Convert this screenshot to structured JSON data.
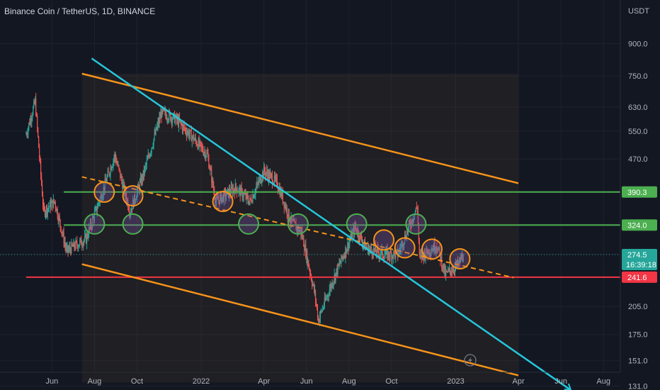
{
  "header": {
    "symbol_line": "Binance Coin / TetherUS, 1D, BINANCE"
  },
  "colors": {
    "background": "#131722",
    "up": "#26a69a",
    "down": "#ef5350",
    "channel": "#f7931a",
    "trendline": "#26c6da",
    "support": "#4caf50",
    "resistance": "#f23645"
  },
  "price_axis": {
    "unit": "USDT",
    "ticks": [
      "900.0",
      "750.0",
      "630.0",
      "550.0",
      "470.0",
      "390.0",
      "325.0",
      "275.0",
      "241.6",
      "205.0",
      "175.0",
      "151.0",
      "131.0"
    ]
  },
  "time_axis": {
    "ticks": [
      "Jun",
      "Aug",
      "Oct",
      "2022",
      "Apr",
      "Jun",
      "Aug",
      "Oct",
      "2023",
      "Apr",
      "Jun",
      "Aug"
    ]
  },
  "price_tags": [
    {
      "label": "390.3",
      "color": "#4caf50"
    },
    {
      "label": "324.0",
      "color": "#4caf50"
    },
    {
      "label": "274.5",
      "sub": "16:39:18",
      "color": "#26a69a"
    },
    {
      "label": "241.6",
      "color": "#f23645"
    }
  ],
  "watermark_icon": "lightning-icon",
  "chart_data": {
    "type": "candlestick",
    "scale": "log",
    "ylim": [
      125,
      1000
    ],
    "xlim": [
      "2021-04-20",
      "2023-08-15"
    ],
    "price_series_approx": [
      [
        "2021-04-25",
        540
      ],
      [
        "2021-05-08",
        650
      ],
      [
        "2021-05-20",
        350
      ],
      [
        "2021-06-05",
        370
      ],
      [
        "2021-06-22",
        280
      ],
      [
        "2021-07-20",
        300
      ],
      [
        "2021-08-10",
        380
      ],
      [
        "2021-08-30",
        480
      ],
      [
        "2021-09-21",
        350
      ],
      [
        "2021-10-10",
        430
      ],
      [
        "2021-11-05",
        610
      ],
      [
        "2021-11-25",
        590
      ],
      [
        "2021-12-20",
        530
      ],
      [
        "2022-01-10",
        480
      ],
      [
        "2022-01-22",
        370
      ],
      [
        "2022-02-20",
        400
      ],
      [
        "2022-03-12",
        370
      ],
      [
        "2022-04-01",
        440
      ],
      [
        "2022-04-20",
        410
      ],
      [
        "2022-05-10",
        330
      ],
      [
        "2022-05-25",
        310
      ],
      [
        "2022-06-13",
        220
      ],
      [
        "2022-06-18",
        190
      ],
      [
        "2022-07-10",
        240
      ],
      [
        "2022-08-10",
        320
      ],
      [
        "2022-08-25",
        285
      ],
      [
        "2022-09-20",
        275
      ],
      [
        "2022-10-10",
        275
      ],
      [
        "2022-11-07",
        360
      ],
      [
        "2022-11-10",
        270
      ],
      [
        "2022-12-05",
        290
      ],
      [
        "2022-12-17",
        245
      ],
      [
        "2023-01-05",
        260
      ],
      [
        "2023-01-12",
        274.5
      ]
    ],
    "levels": [
      {
        "name": "390.3",
        "value": 390.3
      },
      {
        "name": "324.0",
        "value": 324.0
      },
      {
        "name": "241.6",
        "value": 241.6
      }
    ],
    "channel_upper": [
      [
        "2021-07-14",
        760
      ],
      [
        "2023-04-01",
        410
      ]
    ],
    "channel_lower": [
      [
        "2021-07-14",
        260
      ],
      [
        "2023-04-01",
        139
      ]
    ],
    "channel_mid": [
      [
        "2021-07-14",
        425
      ],
      [
        "2023-03-25",
        241
      ]
    ],
    "trendline": [
      [
        "2021-07-28",
        828
      ],
      [
        "2023-06-15",
        128
      ]
    ],
    "last_price": 274.5
  }
}
